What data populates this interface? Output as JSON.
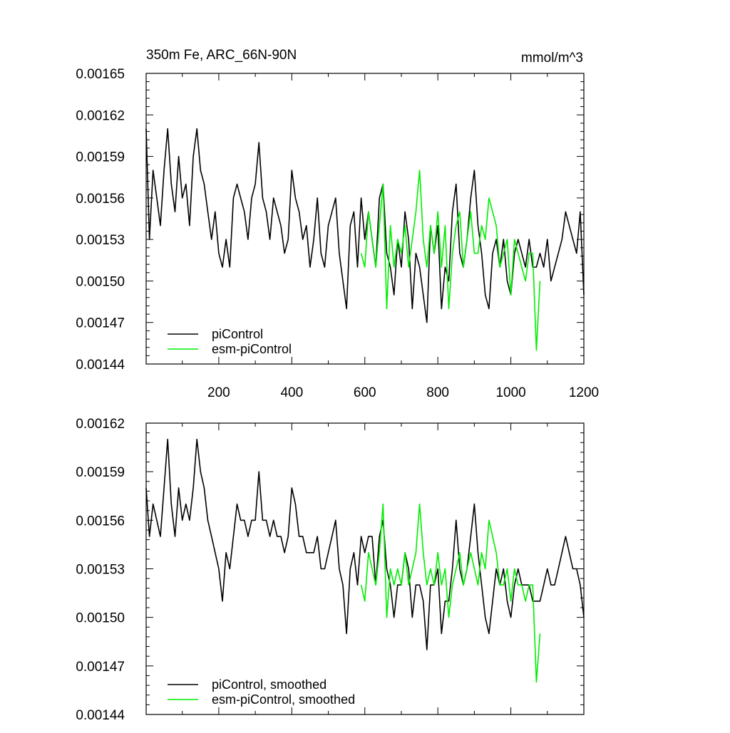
{
  "colors": {
    "piControl": "#000000",
    "esm_piControl": "#00ee00",
    "axis": "#000000",
    "background": "#ffffff"
  },
  "chart_data": [
    {
      "type": "line",
      "title": "350m Fe, ARC_66N-90N",
      "units": "mmol/m^3",
      "xlim": [
        1,
        1200
      ],
      "ylim": [
        0.00144,
        0.00165
      ],
      "x_ticks": [
        200,
        400,
        600,
        800,
        1000,
        1200
      ],
      "x_tick_labels": [
        "200",
        "400",
        "600",
        "800",
        "1000",
        "1200"
      ],
      "y_ticks": [
        0.00144,
        0.00147,
        0.0015,
        0.00153,
        0.00156,
        0.00159,
        0.00162,
        0.00165
      ],
      "y_tick_labels": [
        "0.00144",
        "0.00147",
        "0.00150",
        "0.00153",
        "0.00156",
        "0.00159",
        "0.00162",
        "0.00165"
      ],
      "legend": "bottom-left",
      "grid": false,
      "series": [
        {
          "name": "piControl",
          "color": "#000000",
          "x": [
            1,
            10,
            20,
            30,
            40,
            50,
            60,
            70,
            80,
            90,
            100,
            110,
            120,
            130,
            140,
            150,
            160,
            170,
            180,
            190,
            200,
            210,
            220,
            230,
            240,
            250,
            260,
            270,
            280,
            290,
            300,
            310,
            320,
            330,
            340,
            350,
            360,
            370,
            380,
            390,
            400,
            410,
            420,
            430,
            440,
            450,
            460,
            470,
            480,
            490,
            500,
            510,
            520,
            530,
            540,
            550,
            560,
            570,
            580,
            590,
            600,
            610,
            620,
            630,
            640,
            650,
            660,
            670,
            680,
            690,
            700,
            710,
            720,
            730,
            740,
            750,
            760,
            770,
            780,
            790,
            800,
            810,
            820,
            830,
            840,
            850,
            860,
            870,
            880,
            890,
            900,
            910,
            920,
            930,
            940,
            950,
            960,
            970,
            980,
            990,
            1000,
            1010,
            1020,
            1030,
            1040,
            1050,
            1060,
            1070,
            1080,
            1090,
            1100,
            1110,
            1120,
            1130,
            1140,
            1150,
            1160,
            1170,
            1180,
            1190,
            1200
          ],
          "values": [
            0.00161,
            0.00153,
            0.00158,
            0.00156,
            0.00154,
            0.00158,
            0.00161,
            0.00157,
            0.00155,
            0.00159,
            0.00156,
            0.00157,
            0.00154,
            0.00159,
            0.00161,
            0.00158,
            0.00157,
            0.00155,
            0.00153,
            0.00155,
            0.00152,
            0.00151,
            0.00153,
            0.00151,
            0.00156,
            0.00157,
            0.00156,
            0.00155,
            0.00153,
            0.00156,
            0.00157,
            0.0016,
            0.00156,
            0.00155,
            0.00153,
            0.00156,
            0.00155,
            0.00154,
            0.00152,
            0.00153,
            0.00158,
            0.00156,
            0.00155,
            0.00153,
            0.00154,
            0.00151,
            0.00153,
            0.00156,
            0.00152,
            0.00151,
            0.00154,
            0.00155,
            0.00156,
            0.00152,
            0.0015,
            0.00148,
            0.00154,
            0.00155,
            0.00151,
            0.00156,
            0.00153,
            0.00155,
            0.00153,
            0.00151,
            0.00156,
            0.00157,
            0.00152,
            0.00151,
            0.00149,
            0.00153,
            0.00151,
            0.00155,
            0.00153,
            0.00148,
            0.00152,
            0.00151,
            0.00149,
            0.00147,
            0.00154,
            0.00152,
            0.00154,
            0.00148,
            0.00151,
            0.0015,
            0.00155,
            0.00157,
            0.00152,
            0.00151,
            0.00153,
            0.00156,
            0.00158,
            0.00154,
            0.00152,
            0.00149,
            0.00148,
            0.00152,
            0.00153,
            0.00151,
            0.00153,
            0.0015,
            0.00149,
            0.00152,
            0.00153,
            0.00152,
            0.00151,
            0.00153,
            0.00151,
            0.00151,
            0.00152,
            0.00151,
            0.00153,
            0.0015,
            0.00151,
            0.00152,
            0.00153,
            0.00155,
            0.00154,
            0.00153,
            0.00152,
            0.00155,
            0.00149
          ]
        },
        {
          "name": "esm-piControl",
          "color": "#00ee00",
          "x": [
            590,
            600,
            610,
            620,
            630,
            640,
            650,
            660,
            670,
            680,
            690,
            700,
            710,
            720,
            730,
            740,
            750,
            760,
            770,
            780,
            790,
            800,
            810,
            820,
            830,
            840,
            850,
            860,
            870,
            880,
            890,
            900,
            910,
            920,
            930,
            940,
            950,
            960,
            970,
            980,
            990,
            1000,
            1010,
            1020,
            1030,
            1040,
            1050,
            1060,
            1070,
            1080
          ],
          "values": [
            0.00152,
            0.00151,
            0.00155,
            0.00153,
            0.00151,
            0.00154,
            0.00157,
            0.00148,
            0.00154,
            0.00151,
            0.00153,
            0.00152,
            0.00154,
            0.00151,
            0.00153,
            0.00155,
            0.00158,
            0.00153,
            0.00151,
            0.00154,
            0.00152,
            0.00155,
            0.00151,
            0.00154,
            0.00148,
            0.00152,
            0.00154,
            0.00155,
            0.00151,
            0.00153,
            0.00155,
            0.00152,
            0.00152,
            0.00154,
            0.00153,
            0.00156,
            0.00155,
            0.00154,
            0.00151,
            0.00152,
            0.00153,
            0.00149,
            0.00153,
            0.00152,
            0.00151,
            0.0015,
            0.00152,
            0.00152,
            0.00145,
            0.0015
          ]
        }
      ]
    },
    {
      "type": "line",
      "title": "",
      "xlim": [
        1,
        1200
      ],
      "ylim": [
        0.00144,
        0.00162
      ],
      "x_ticks": [
        200,
        400,
        600,
        800,
        1000,
        1200
      ],
      "y_ticks": [
        0.00144,
        0.00147,
        0.0015,
        0.00153,
        0.00156,
        0.00159,
        0.00162
      ],
      "y_tick_labels": [
        "0.00144",
        "0.00147",
        "0.00150",
        "0.00153",
        "0.00156",
        "0.00159",
        "0.00162"
      ],
      "legend": "bottom-left",
      "grid": false,
      "series": [
        {
          "name": "piControl, smoothed",
          "color": "#000000",
          "x": [
            1,
            10,
            20,
            30,
            40,
            50,
            60,
            70,
            80,
            90,
            100,
            110,
            120,
            130,
            140,
            150,
            160,
            170,
            180,
            190,
            200,
            210,
            220,
            230,
            240,
            250,
            260,
            270,
            280,
            290,
            300,
            310,
            320,
            330,
            340,
            350,
            360,
            370,
            380,
            390,
            400,
            410,
            420,
            430,
            440,
            450,
            460,
            470,
            480,
            490,
            500,
            510,
            520,
            530,
            540,
            550,
            560,
            570,
            580,
            590,
            600,
            610,
            620,
            630,
            640,
            650,
            660,
            670,
            680,
            690,
            700,
            710,
            720,
            730,
            740,
            750,
            760,
            770,
            780,
            790,
            800,
            810,
            820,
            830,
            840,
            850,
            860,
            870,
            880,
            890,
            900,
            910,
            920,
            930,
            940,
            950,
            960,
            970,
            980,
            990,
            1000,
            1010,
            1020,
            1030,
            1040,
            1050,
            1060,
            1070,
            1080,
            1090,
            1100,
            1110,
            1120,
            1130,
            1140,
            1150,
            1160,
            1170,
            1180,
            1190,
            1200
          ],
          "values": [
            0.00158,
            0.00155,
            0.00157,
            0.00156,
            0.00155,
            0.00158,
            0.00161,
            0.00157,
            0.00155,
            0.00158,
            0.00156,
            0.00157,
            0.00156,
            0.00158,
            0.00161,
            0.00159,
            0.00158,
            0.00156,
            0.00155,
            0.00154,
            0.00153,
            0.00151,
            0.00154,
            0.00153,
            0.00155,
            0.00157,
            0.00156,
            0.00156,
            0.00155,
            0.00156,
            0.00156,
            0.00159,
            0.00156,
            0.00156,
            0.00155,
            0.00156,
            0.00155,
            0.00155,
            0.00154,
            0.00155,
            0.00158,
            0.00157,
            0.00155,
            0.00155,
            0.00154,
            0.00154,
            0.00154,
            0.00155,
            0.00153,
            0.00153,
            0.00154,
            0.00155,
            0.00156,
            0.00153,
            0.00152,
            0.00149,
            0.00153,
            0.00154,
            0.00152,
            0.00155,
            0.00154,
            0.00155,
            0.00155,
            0.00152,
            0.00155,
            0.00156,
            0.00153,
            0.00152,
            0.0015,
            0.00152,
            0.00152,
            0.00154,
            0.00153,
            0.0015,
            0.00152,
            0.00152,
            0.00151,
            0.00148,
            0.00152,
            0.00152,
            0.00153,
            0.00149,
            0.00151,
            0.00151,
            0.00153,
            0.00156,
            0.00153,
            0.00152,
            0.00153,
            0.00155,
            0.00157,
            0.00154,
            0.00152,
            0.0015,
            0.00149,
            0.00151,
            0.00153,
            0.00152,
            0.00153,
            0.00151,
            0.0015,
            0.00152,
            0.00153,
            0.00152,
            0.00152,
            0.00152,
            0.00151,
            0.00151,
            0.00151,
            0.00152,
            0.00153,
            0.00152,
            0.00152,
            0.00153,
            0.00154,
            0.00155,
            0.00154,
            0.00153,
            0.00153,
            0.00152,
            0.0015
          ]
        },
        {
          "name": "esm-piControl, smoothed",
          "color": "#00ee00",
          "x": [
            590,
            600,
            610,
            620,
            630,
            640,
            650,
            660,
            670,
            680,
            690,
            700,
            710,
            720,
            730,
            740,
            750,
            760,
            770,
            780,
            790,
            800,
            810,
            820,
            830,
            840,
            850,
            860,
            870,
            880,
            890,
            900,
            910,
            920,
            930,
            940,
            950,
            960,
            970,
            980,
            990,
            1000,
            1010,
            1020,
            1030,
            1040,
            1050,
            1060,
            1070,
            1080
          ],
          "values": [
            0.00152,
            0.00151,
            0.00154,
            0.00153,
            0.00152,
            0.00154,
            0.00157,
            0.0015,
            0.00153,
            0.00152,
            0.00153,
            0.00152,
            0.00154,
            0.00152,
            0.00153,
            0.00154,
            0.00157,
            0.00154,
            0.00152,
            0.00153,
            0.00152,
            0.00154,
            0.00152,
            0.00153,
            0.0015,
            0.00152,
            0.00153,
            0.00154,
            0.00152,
            0.00153,
            0.00154,
            0.00153,
            0.00152,
            0.00154,
            0.00153,
            0.00156,
            0.00155,
            0.00154,
            0.00152,
            0.00152,
            0.00153,
            0.00151,
            0.00153,
            0.00152,
            0.00152,
            0.00151,
            0.00152,
            0.00152,
            0.00146,
            0.00149
          ]
        }
      ]
    }
  ]
}
